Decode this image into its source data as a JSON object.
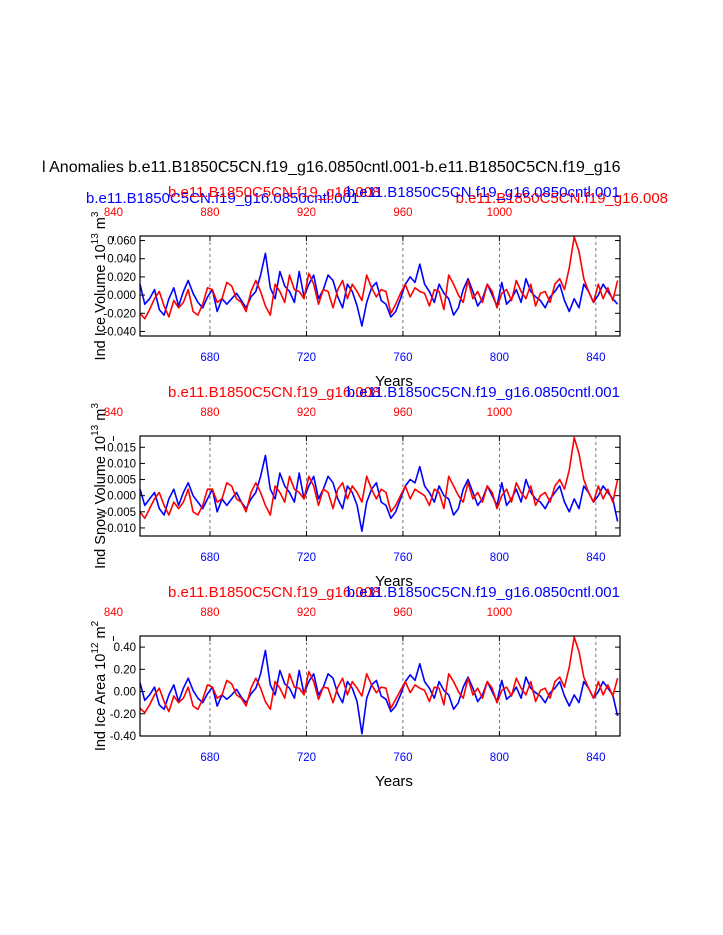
{
  "title": "l Anomalies b.e11.B1850C5CN.f19_g16.0850cntl.001-b.e11.B1850C5CN.f19_g16",
  "header_series": [
    {
      "label": "b.e11.B1850C5CN.f19_g16.0850cntl.001",
      "color": "#0000ff"
    },
    {
      "label": "b.e11.B1850C5CN.f19_g16.008",
      "color": "#ff0000"
    }
  ],
  "colors": {
    "blue": "#0000ff",
    "red": "#ff0000",
    "axis": "#000000",
    "grid": "#666666"
  },
  "chart_data": [
    {
      "type": "line",
      "ylabel": "Ind Ice Volume 10",
      "ylabel_exp": "13",
      "ylabel_unit": " m",
      "ylabel_unit_exp": "3",
      "xlabel": "Years",
      "top_labels": [
        "b.e11.B1850C5CN.f19_g16.008",
        "b.e11.B1850C5CN.f19_g16.0850cntl.001"
      ],
      "ylim": [
        -0.045,
        0.065
      ],
      "yticks": [
        -0.04,
        -0.02,
        0.0,
        0.02,
        0.04,
        0.06
      ],
      "ytick_labels": [
        "-0.040",
        "-0.020",
        "0.000",
        "0.020",
        "0.040",
        "0.060"
      ],
      "x_bottom_range": [
        651,
        850
      ],
      "x_bottom_ticks": [
        680,
        720,
        760,
        800,
        840
      ],
      "x_top_range": [
        851,
        1050
      ],
      "x_top_ticks": [
        840,
        880,
        920,
        960,
        1000
      ],
      "vgrid_at": [
        680,
        720,
        760,
        800,
        840
      ],
      "series": [
        {
          "name": "b.e11.B1850C5CN.f19_g16.0850cntl.001",
          "color": "#0000ff",
          "axis": "bottom",
          "values": [
            0.012,
            -0.01,
            -0.004,
            0.006,
            -0.016,
            -0.022,
            -0.004,
            0.008,
            -0.012,
            0.004,
            0.016,
            0.002,
            -0.008,
            -0.014,
            -0.002,
            0.006,
            -0.018,
            -0.004,
            -0.01,
            -0.004,
            0.002,
            -0.006,
            -0.014,
            -0.002,
            0.004,
            0.022,
            0.046,
            0.008,
            -0.004,
            0.026,
            0.01,
            0.004,
            -0.008,
            0.026,
            -0.002,
            0.012,
            0.022,
            -0.004,
            0.006,
            0.022,
            0.016,
            -0.002,
            -0.014,
            0.012,
            0.004,
            -0.012,
            -0.034,
            -0.008,
            0.008,
            0.014,
            -0.006,
            -0.01,
            -0.024,
            -0.018,
            -0.004,
            0.012,
            0.02,
            0.014,
            0.034,
            0.012,
            0.004,
            -0.008,
            0.012,
            0.002,
            -0.004,
            -0.022,
            -0.014,
            0.006,
            0.018,
            0.004,
            -0.012,
            -0.004,
            0.012,
            0.0,
            -0.012,
            0.014,
            -0.01,
            -0.004,
            0.006,
            -0.008,
            0.018,
            0.004,
            -0.002,
            -0.006,
            -0.014,
            -0.002,
            0.004,
            0.012,
            -0.006,
            -0.018,
            -0.004,
            -0.014,
            0.012,
            0.004,
            -0.008,
            0.0,
            0.012,
            0.004,
            -0.004,
            -0.01
          ]
        },
        {
          "name": "b.e11.B1850C5CN.f19_g16.008",
          "color": "#ff0000",
          "axis": "top",
          "values": [
            -0.02,
            -0.026,
            -0.016,
            -0.004,
            0.004,
            -0.012,
            -0.024,
            -0.006,
            -0.014,
            -0.008,
            0.006,
            -0.018,
            -0.022,
            -0.01,
            0.008,
            0.006,
            -0.008,
            -0.004,
            0.014,
            0.01,
            -0.004,
            -0.008,
            -0.018,
            0.004,
            0.016,
            0.004,
            -0.012,
            -0.022,
            0.012,
            0.004,
            -0.008,
            0.022,
            0.006,
            0.004,
            -0.004,
            0.024,
            0.012,
            -0.01,
            0.006,
            0.004,
            -0.014,
            0.006,
            0.016,
            -0.004,
            0.012,
            0.004,
            -0.006,
            0.022,
            0.008,
            -0.002,
            0.006,
            0.004,
            -0.02,
            -0.01,
            0.002,
            0.012,
            -0.002,
            0.008,
            0.004,
            0.002,
            -0.012,
            0.006,
            0.004,
            -0.016,
            0.022,
            0.012,
            0.0,
            -0.008,
            0.016,
            -0.004,
            0.004,
            -0.008,
            0.012,
            0.004,
            -0.014,
            0.002,
            0.006,
            -0.006,
            0.016,
            0.004,
            -0.004,
            0.012,
            -0.012,
            0.002,
            0.004,
            -0.008,
            0.012,
            0.018,
            0.006,
            0.03,
            0.064,
            0.048,
            0.018,
            0.004,
            -0.008,
            0.012,
            -0.004,
            0.008,
            -0.006,
            0.016
          ]
        }
      ]
    },
    {
      "type": "line",
      "ylabel": "Ind Snow Volume 10",
      "ylabel_exp": "13",
      "ylabel_unit": " m",
      "ylabel_unit_exp": "3",
      "xlabel": "Years",
      "top_labels": [
        "b.e11.B1850C5CN.f19_g16.008",
        "b.e11.B1850C5CN.f19_g16.0850cntl.001"
      ],
      "ylim": [
        -0.0125,
        0.0185
      ],
      "yticks": [
        -0.01,
        -0.005,
        0.0,
        0.005,
        0.01,
        0.015
      ],
      "ytick_labels": [
        "-0.010",
        "-0.005",
        "0.000",
        "0.005",
        "0.010",
        "0.015"
      ],
      "x_bottom_range": [
        651,
        850
      ],
      "x_bottom_ticks": [
        680,
        720,
        760,
        800,
        840
      ],
      "x_top_range": [
        851,
        1050
      ],
      "x_top_ticks": [
        840,
        880,
        920,
        960,
        1000
      ],
      "vgrid_at": [
        680,
        720,
        760,
        800,
        840
      ],
      "series": [
        {
          "name": "b.e11.B1850C5CN.f19_g16.0850cntl.001",
          "color": "#0000ff",
          "axis": "bottom",
          "values": [
            0.002,
            -0.003,
            -0.001,
            0.001,
            -0.004,
            -0.006,
            -0.001,
            0.002,
            -0.003,
            0.001,
            0.004,
            0.0,
            -0.002,
            -0.004,
            -0.001,
            0.002,
            -0.005,
            -0.001,
            -0.003,
            -0.001,
            0.001,
            -0.002,
            -0.004,
            -0.001,
            0.001,
            0.006,
            0.0125,
            0.002,
            -0.001,
            0.007,
            0.003,
            0.001,
            -0.002,
            0.007,
            -0.001,
            0.003,
            0.006,
            -0.001,
            0.002,
            0.006,
            0.004,
            -0.001,
            -0.004,
            0.003,
            0.001,
            -0.003,
            -0.011,
            -0.002,
            0.002,
            0.004,
            -0.002,
            -0.003,
            -0.007,
            -0.005,
            -0.001,
            0.003,
            0.005,
            0.004,
            0.009,
            0.003,
            0.001,
            -0.002,
            0.003,
            0.0,
            -0.001,
            -0.006,
            -0.004,
            0.002,
            0.005,
            0.001,
            -0.003,
            -0.001,
            0.003,
            0.0,
            -0.003,
            0.004,
            -0.003,
            -0.001,
            0.002,
            -0.002,
            0.005,
            0.001,
            -0.001,
            -0.002,
            -0.004,
            -0.001,
            0.001,
            0.003,
            -0.002,
            -0.005,
            -0.001,
            -0.004,
            0.003,
            0.001,
            -0.002,
            0.0,
            0.003,
            0.001,
            -0.001,
            -0.008
          ]
        },
        {
          "name": "b.e11.B1850C5CN.f19_g16.008",
          "color": "#ff0000",
          "axis": "top",
          "values": [
            -0.005,
            -0.007,
            -0.004,
            -0.001,
            0.001,
            -0.003,
            -0.006,
            -0.002,
            -0.004,
            -0.002,
            0.002,
            -0.005,
            -0.006,
            -0.003,
            0.002,
            0.002,
            -0.002,
            -0.001,
            0.004,
            0.003,
            -0.001,
            -0.002,
            -0.005,
            0.001,
            0.004,
            0.001,
            -0.003,
            -0.006,
            0.003,
            0.001,
            -0.002,
            0.006,
            0.002,
            0.001,
            -0.001,
            0.006,
            0.003,
            -0.003,
            0.002,
            0.001,
            -0.004,
            0.002,
            0.004,
            -0.001,
            0.003,
            0.001,
            -0.002,
            0.006,
            0.002,
            -0.001,
            0.002,
            0.001,
            -0.005,
            -0.003,
            0.0,
            0.003,
            -0.001,
            0.002,
            0.001,
            0.0,
            -0.003,
            0.002,
            0.001,
            -0.004,
            0.006,
            0.003,
            0.0,
            -0.002,
            0.004,
            -0.001,
            0.001,
            -0.002,
            0.003,
            0.001,
            -0.004,
            0.0,
            0.002,
            -0.002,
            0.004,
            0.001,
            -0.001,
            0.003,
            -0.003,
            0.0,
            0.001,
            -0.002,
            0.003,
            0.005,
            0.002,
            0.008,
            0.018,
            0.013,
            0.005,
            0.001,
            -0.002,
            0.003,
            -0.001,
            0.002,
            -0.002,
            0.005
          ]
        }
      ]
    },
    {
      "type": "line",
      "ylabel": "Ind Ice Area 10",
      "ylabel_exp": "12",
      "ylabel_unit": " m",
      "ylabel_unit_exp": "2",
      "xlabel": "Years",
      "top_labels": [
        "b.e11.B1850C5CN.f19_g16.008",
        "b.e11.B1850C5CN.f19_g16.0850cntl.001"
      ],
      "ylim": [
        -0.4,
        0.5
      ],
      "yticks": [
        -0.4,
        -0.2,
        0.0,
        0.2,
        0.4
      ],
      "ytick_labels": [
        "-0.40",
        "-0.20",
        "0.00",
        "0.20",
        "0.40"
      ],
      "x_bottom_range": [
        651,
        850
      ],
      "x_bottom_ticks": [
        680,
        720,
        760,
        800,
        840
      ],
      "x_top_range": [
        851,
        1050
      ],
      "x_top_ticks": [
        840,
        880,
        920,
        960,
        1000
      ],
      "vgrid_at": [
        680,
        720,
        760,
        800,
        840
      ],
      "series": [
        {
          "name": "b.e11.B1850C5CN.f19_g16.0850cntl.001",
          "color": "#0000ff",
          "axis": "bottom",
          "values": [
            0.08,
            -0.08,
            -0.03,
            0.04,
            -0.12,
            -0.16,
            -0.03,
            0.06,
            -0.09,
            0.03,
            0.12,
            0.01,
            -0.06,
            -0.1,
            -0.02,
            0.04,
            -0.13,
            -0.03,
            -0.07,
            -0.03,
            0.02,
            -0.05,
            -0.1,
            -0.02,
            0.03,
            0.16,
            0.37,
            0.06,
            -0.03,
            0.19,
            0.07,
            0.03,
            -0.06,
            0.19,
            -0.02,
            0.09,
            0.16,
            -0.03,
            0.04,
            0.16,
            0.12,
            -0.02,
            -0.1,
            0.09,
            0.03,
            -0.09,
            -0.38,
            -0.06,
            0.06,
            0.1,
            -0.04,
            -0.07,
            -0.18,
            -0.13,
            -0.03,
            0.09,
            0.15,
            0.1,
            0.25,
            0.09,
            0.03,
            -0.06,
            0.09,
            0.01,
            -0.03,
            -0.16,
            -0.1,
            0.04,
            0.13,
            0.03,
            -0.09,
            -0.03,
            0.09,
            0.0,
            -0.09,
            0.1,
            -0.07,
            -0.03,
            0.04,
            -0.06,
            0.13,
            0.03,
            -0.01,
            -0.04,
            -0.1,
            -0.01,
            0.03,
            0.09,
            -0.04,
            -0.13,
            -0.03,
            -0.1,
            0.09,
            0.03,
            -0.06,
            0.0,
            0.09,
            0.03,
            -0.03,
            -0.22
          ]
        },
        {
          "name": "b.e11.B1850C5CN.f19_g16.008",
          "color": "#ff0000",
          "axis": "top",
          "values": [
            -0.15,
            -0.19,
            -0.12,
            -0.03,
            0.03,
            -0.09,
            -0.18,
            -0.04,
            -0.1,
            -0.06,
            0.04,
            -0.13,
            -0.16,
            -0.07,
            0.06,
            0.04,
            -0.06,
            -0.03,
            0.1,
            0.07,
            -0.03,
            -0.06,
            -0.13,
            0.03,
            0.12,
            0.03,
            -0.09,
            -0.16,
            0.09,
            0.03,
            -0.06,
            0.16,
            0.04,
            0.03,
            -0.03,
            0.18,
            0.09,
            -0.07,
            0.04,
            0.03,
            -0.1,
            0.04,
            0.12,
            -0.03,
            0.09,
            0.03,
            -0.04,
            0.16,
            0.06,
            -0.01,
            0.04,
            0.03,
            -0.15,
            -0.07,
            0.01,
            0.09,
            -0.01,
            0.06,
            0.03,
            0.01,
            -0.09,
            0.04,
            0.03,
            -0.12,
            0.16,
            0.09,
            0.0,
            -0.06,
            0.12,
            -0.03,
            0.03,
            -0.06,
            0.09,
            0.03,
            -0.1,
            0.01,
            0.04,
            -0.04,
            0.12,
            0.03,
            -0.03,
            0.09,
            -0.09,
            0.01,
            0.03,
            -0.06,
            0.09,
            0.13,
            0.04,
            0.22,
            0.49,
            0.36,
            0.13,
            0.03,
            -0.06,
            0.09,
            -0.03,
            0.06,
            -0.04,
            0.12
          ]
        }
      ]
    }
  ]
}
